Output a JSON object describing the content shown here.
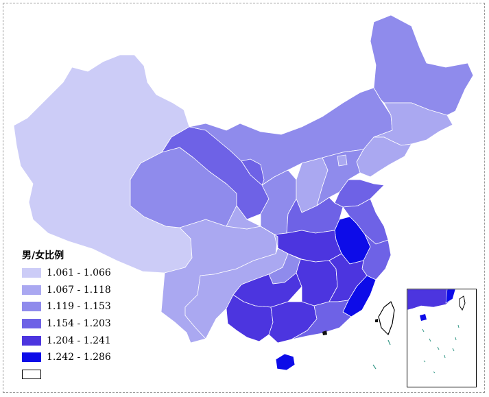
{
  "legend": {
    "title": "男/女比例",
    "items": [
      {
        "label": "1.061 - 1.066",
        "color": "#ccccf7"
      },
      {
        "label": "1.067 - 1.118",
        "color": "#aaa8f1"
      },
      {
        "label": "1.119 - 1.153",
        "color": "#8f8bec"
      },
      {
        "label": "1.154 - 1.203",
        "color": "#6e62e6"
      },
      {
        "label": "1.204 - 1.241",
        "color": "#4c35df"
      },
      {
        "label": "1.242 - 1.286",
        "color": "#0d0ce8"
      },
      {
        "label": "",
        "color": "#ffffff"
      }
    ]
  },
  "colors": {
    "border": "#ffffff",
    "frame": "#9a9a9a",
    "taiwan_outline": "#000000",
    "sea_islands": "#3a9a8a"
  }
}
